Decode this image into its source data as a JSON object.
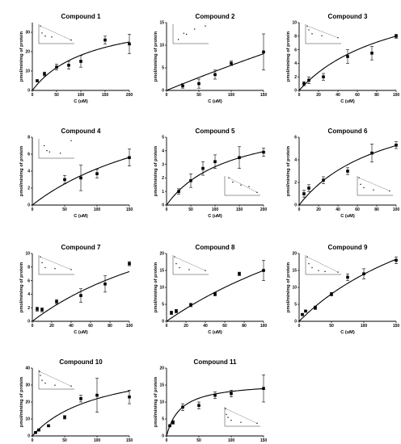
{
  "chart_data": [
    {
      "type": "scatter",
      "title": "Compound 1",
      "xlabel": "C (uM)",
      "ylabel": "pmol/min/mg of protein",
      "xlim": [
        0,
        200
      ],
      "ylim": [
        0,
        35
      ],
      "xticks": [
        0,
        50,
        100,
        150,
        200
      ],
      "yticks": [
        0,
        10,
        20,
        30
      ],
      "x": [
        10,
        25,
        50,
        75,
        100,
        150,
        200
      ],
      "y": [
        5,
        8.5,
        12,
        13,
        15,
        26,
        24
      ],
      "err": [
        0.5,
        1,
        1.5,
        2,
        3,
        2,
        5
      ],
      "fit": {
        "vmax": 40,
        "km": 120
      },
      "inset": {
        "pos": "top-left",
        "x": [
          0.005,
          0.01,
          0.02,
          0.04,
          0.1
        ],
        "y": [
          0.2,
          0.12,
          0.085,
          0.075,
          0.04
        ],
        "line": true
      }
    },
    {
      "type": "scatter",
      "title": "Compound 2",
      "xlabel": "C (uM)",
      "ylabel": "pmol/min/mg of protein",
      "xlim": [
        0,
        150
      ],
      "ylim": [
        0,
        15
      ],
      "xticks": [
        0,
        50,
        100,
        150
      ],
      "yticks": [
        0,
        5,
        10,
        15
      ],
      "x": [
        25,
        50,
        75,
        100,
        150
      ],
      "y": [
        1,
        1.5,
        3.5,
        6,
        8.5
      ],
      "err": [
        0.5,
        1,
        1,
        0.5,
        4
      ],
      "fit": {
        "vmax": 100,
        "km": 1700
      },
      "inset": {
        "pos": "top-left",
        "x": [
          0.01,
          0.02,
          0.025,
          0.04,
          0.06
        ],
        "y": [
          0.2,
          0.5,
          0.45,
          0.7,
          0.85
        ],
        "line": false
      }
    },
    {
      "type": "scatter",
      "title": "Compound 3",
      "xlabel": "C (uM)",
      "ylabel": "pmol/min/mg of protein",
      "xlim": [
        0,
        100
      ],
      "ylim": [
        0,
        10
      ],
      "xticks": [
        0,
        20,
        40,
        60,
        80,
        100
      ],
      "yticks": [
        0,
        2,
        4,
        6,
        8,
        10
      ],
      "x": [
        5,
        10,
        25,
        50,
        75,
        100
      ],
      "y": [
        1,
        1.5,
        2,
        5,
        5.5,
        8
      ],
      "err": [
        0.3,
        0.5,
        0.5,
        1,
        1,
        0.3
      ],
      "fit": {
        "vmax": 16,
        "km": 100
      },
      "inset": {
        "pos": "top-left",
        "x": [
          0.01,
          0.02,
          0.04,
          0.1,
          0.2
        ],
        "y": [
          0.9,
          0.7,
          0.5,
          0.4,
          0.3
        ],
        "line": true
      }
    },
    {
      "type": "scatter",
      "title": "Compound 4",
      "xlabel": "C (uM)",
      "ylabel": "pmol/min/mg of protein",
      "xlim": [
        0,
        150
      ],
      "ylim": [
        0,
        8
      ],
      "xticks": [
        0,
        50,
        100,
        150
      ],
      "yticks": [
        0,
        2,
        4,
        6,
        8
      ],
      "x": [
        50,
        75,
        100,
        150
      ],
      "y": [
        3,
        3.2,
        3.7,
        5.6
      ],
      "err": [
        0.5,
        1.5,
        0.5,
        1
      ],
      "fit": {
        "vmax": 15,
        "km": 250
      },
      "inset": {
        "pos": "top-left",
        "x": [
          0.01,
          0.015,
          0.02,
          0.04,
          0.06
        ],
        "y": [
          0.5,
          0.3,
          0.25,
          0.2,
          0.7
        ],
        "line": false
      }
    },
    {
      "type": "scatter",
      "title": "Compound 5",
      "xlabel": "C (uM)",
      "ylabel": "pmol/min/mg of protein",
      "xlim": [
        0,
        200
      ],
      "ylim": [
        0,
        5
      ],
      "xticks": [
        0,
        50,
        100,
        150,
        200
      ],
      "yticks": [
        0,
        1,
        2,
        3,
        4,
        5
      ],
      "x": [
        25,
        50,
        75,
        100,
        150,
        200
      ],
      "y": [
        1,
        1.8,
        2.7,
        3.2,
        3.5,
        3.9
      ],
      "err": [
        0.2,
        0.5,
        0.5,
        0.5,
        0.8,
        0.3
      ],
      "fit": {
        "vmax": 6.5,
        "km": 130
      },
      "inset": {
        "pos": "bottom-right",
        "x": [
          0.005,
          0.01,
          0.02,
          0.03,
          0.04
        ],
        "y": [
          0.6,
          0.45,
          0.35,
          0.3,
          0.1
        ],
        "line": true
      }
    },
    {
      "type": "scatter",
      "title": "Compound 6",
      "xlabel": "C (uM)",
      "ylabel": "pmol/min/mg of protein",
      "xlim": [
        0,
        100
      ],
      "ylim": [
        0,
        6
      ],
      "xticks": [
        0,
        20,
        40,
        60,
        80,
        100
      ],
      "yticks": [
        0,
        2,
        4,
        6
      ],
      "x": [
        5,
        10,
        25,
        50,
        75,
        100
      ],
      "y": [
        1,
        1.5,
        2.2,
        3,
        4.6,
        5.3
      ],
      "err": [
        0.3,
        0.3,
        0.3,
        0.3,
        0.8,
        0.3
      ],
      "fit": {
        "vmax": 10,
        "km": 90
      },
      "inset": {
        "pos": "bottom-right",
        "x": [
          0.01,
          0.02,
          0.04,
          0.1,
          0.2
        ],
        "y": [
          0.8,
          0.5,
          0.35,
          0.25,
          0.2
        ],
        "line": true
      }
    },
    {
      "type": "scatter",
      "title": "Compound 7",
      "xlabel": "C (uM)",
      "ylabel": "pmol/min/mg of protein",
      "xlim": [
        0,
        100
      ],
      "ylim": [
        0,
        10
      ],
      "xticks": [
        0,
        20,
        40,
        60,
        80,
        100
      ],
      "yticks": [
        0,
        2,
        4,
        6,
        8,
        10
      ],
      "x": [
        5,
        10,
        25,
        50,
        75,
        100
      ],
      "y": [
        1.8,
        1.7,
        2.9,
        3.8,
        5.5,
        8.5
      ],
      "err": [
        0.3,
        0.3,
        0.3,
        1,
        1.2,
        0.3
      ],
      "fit": {
        "vmax": 22,
        "km": 200
      },
      "inset": {
        "pos": "top-left",
        "x": [
          0.01,
          0.02,
          0.04,
          0.1,
          0.2
        ],
        "y": [
          0.9,
          0.6,
          0.35,
          0.3,
          0.25
        ],
        "line": true
      }
    },
    {
      "type": "scatter",
      "title": "Compound 8",
      "xlabel": "C (uM)",
      "ylabel": "pmol/min/mg of protein",
      "xlim": [
        0,
        100
      ],
      "ylim": [
        0,
        20
      ],
      "xticks": [
        0,
        20,
        40,
        60,
        80,
        100
      ],
      "yticks": [
        0,
        5,
        10,
        15,
        20
      ],
      "x": [
        5,
        10,
        25,
        50,
        75,
        100
      ],
      "y": [
        2.5,
        3,
        4.8,
        8,
        14,
        15
      ],
      "err": [
        0.5,
        0.5,
        0.5,
        0.5,
        0.5,
        3
      ],
      "fit": {
        "vmax": 60,
        "km": 300
      },
      "inset": {
        "pos": "top-left",
        "x": [
          0.01,
          0.02,
          0.04,
          0.1,
          0.2
        ],
        "y": [
          0.9,
          0.55,
          0.35,
          0.25,
          0.2
        ],
        "line": true
      }
    },
    {
      "type": "scatter",
      "title": "Compound 9",
      "xlabel": "C (uM)",
      "ylabel": "pmol/min/mg of protein",
      "xlim": [
        0,
        150
      ],
      "ylim": [
        0,
        20
      ],
      "xticks": [
        0,
        50,
        100,
        150
      ],
      "yticks": [
        0,
        5,
        10,
        15,
        20
      ],
      "x": [
        5,
        10,
        25,
        50,
        75,
        100,
        150
      ],
      "y": [
        2,
        3,
        4,
        8,
        13,
        14,
        18
      ],
      "err": [
        0.3,
        0.3,
        0.5,
        0.5,
        1,
        1.5,
        1
      ],
      "fit": {
        "vmax": 50,
        "km": 260
      },
      "inset": {
        "pos": "top-left",
        "x": [
          0.005,
          0.01,
          0.02,
          0.04,
          0.06,
          0.1
        ],
        "y": [
          0.9,
          0.55,
          0.35,
          0.2,
          0.15,
          0.12
        ],
        "line": true
      }
    },
    {
      "type": "scatter",
      "title": "Compound 10",
      "xlabel": "C (uM)",
      "ylabel": "pmol/min/mg of protein",
      "xlim": [
        0,
        150
      ],
      "ylim": [
        0,
        40
      ],
      "xticks": [
        0,
        50,
        100,
        150
      ],
      "yticks": [
        0,
        10,
        20,
        30,
        40
      ],
      "x": [
        5,
        10,
        25,
        50,
        75,
        100,
        150
      ],
      "y": [
        2,
        3.5,
        6,
        11,
        22,
        24,
        23
      ],
      "err": [
        0.3,
        0.5,
        0.5,
        1,
        2,
        10,
        4
      ],
      "fit": {
        "vmax": 45,
        "km": 105
      },
      "inset": {
        "pos": "top-left",
        "x": [
          0.005,
          0.01,
          0.02,
          0.04,
          0.1,
          0.2
        ],
        "y": [
          0.9,
          0.7,
          0.45,
          0.3,
          0.2,
          0.15
        ],
        "line": true
      }
    },
    {
      "type": "scatter",
      "title": "Compound 11",
      "xlabel": "C (uM)",
      "ylabel": "pmol/min/mg of protein",
      "xlim": [
        0,
        150
      ],
      "ylim": [
        0,
        20
      ],
      "xticks": [
        0,
        50,
        100,
        150
      ],
      "yticks": [
        0,
        5,
        10,
        15,
        20
      ],
      "x": [
        5,
        10,
        25,
        50,
        75,
        100,
        150
      ],
      "y": [
        3,
        4,
        8.5,
        9,
        12,
        12.5,
        14
      ],
      "err": [
        0.3,
        0.5,
        1,
        1,
        1,
        1,
        4
      ],
      "fit": {
        "vmax": 16,
        "km": 22
      },
      "inset": {
        "pos": "bottom-right",
        "x": [
          0.005,
          0.01,
          0.02,
          0.04,
          0.1,
          0.2
        ],
        "y": [
          0.9,
          0.6,
          0.45,
          0.3,
          0.2,
          0.15
        ],
        "line": true
      }
    }
  ]
}
